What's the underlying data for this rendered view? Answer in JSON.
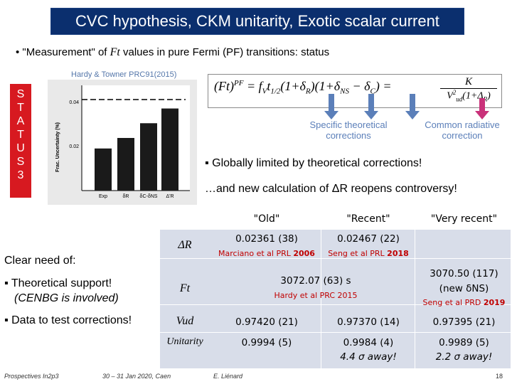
{
  "title": "CVC hypothesis, CKM unitarity, Exotic scalar current",
  "bullet": {
    "prefix": "• \"Measurement\" of ",
    "ft": "Ft",
    "suffix": " values in pure Fermi (PF) transitions: status"
  },
  "hardy_label": "Hardy & Towner PRC91(2015)",
  "status_vertical": [
    "S",
    "T",
    "A",
    "T",
    "U",
    "S",
    "3"
  ],
  "chart": {
    "ylabel": "Frac. Uncertainty (%)",
    "ticks": [
      "0.04",
      "0.02"
    ],
    "categories": [
      "Exp",
      "δR",
      "δC-δNS",
      "Δ'R"
    ]
  },
  "chart_data": {
    "type": "bar",
    "categories": [
      "Exp",
      "δR",
      "δC-δNS",
      "ΔR"
    ],
    "values": [
      0.02,
      0.025,
      0.032,
      0.039
    ],
    "ylabel": "Frac. Uncertainty (%)",
    "ylim": [
      0,
      0.05
    ]
  },
  "formula": {
    "lhs": "(Ft)",
    "sup": "PF",
    "rhs": "= f",
    "mid": "V",
    "rest": "t",
    "sub": "1/2",
    "terms": "(1+δ",
    "r": "R",
    "plus": ")(1+δ",
    "ns": "NS",
    "minus": " − δ",
    "c": "C",
    "close": ") =",
    "frac_num": "K",
    "frac_den": "V",
    "ud": "ud",
    "den_tail": "(1+Δ",
    "den_r": "R",
    "den_close": ")"
  },
  "notes": {
    "specific": "Specific theoretical corrections",
    "common": "Common radiative correction"
  },
  "globally": "▪ Globally limited by theoretical corrections!",
  "new_calc": "…and new calculation of ΔR reopens controversy!",
  "clear_need": "Clear need of:",
  "support": "▪ Theoretical support!",
  "support2": "(CENBG is involved)",
  "data_test": "▪ Data to test corrections!",
  "table": {
    "headers": [
      "\"Old\"",
      "\"Recent\"",
      "\"Very recent\""
    ],
    "row_labels": [
      "ΔR",
      "Ft",
      "Vud",
      "Unitarity"
    ],
    "delta_old": "0.02361 (38)",
    "delta_recent": "0.02467 (22)",
    "delta_old_ref": "Marciano et al PRL ",
    "delta_old_year": "2006",
    "delta_recent_ref": "Seng et al PRL ",
    "delta_recent_year": "2018",
    "ft_value": "3072.07 (63) s",
    "ft_ref": "Hardy et al PRC 2015",
    "ft_new": "3070.50 (117)",
    "ft_new_note": "(new δNS)",
    "ft_new_ref": "Seng et al PRD ",
    "ft_new_year": "2019",
    "vud": [
      "0.97420 (21)",
      "0.97370 (14)",
      "0.97395 (21)"
    ],
    "unit": [
      "0.9994 (5)",
      "0.9984 (4)",
      "0.9989 (5)"
    ],
    "away": [
      "4.4 σ away!",
      "2.2 σ away!"
    ]
  },
  "footer": {
    "left": "Prospectives In2p3",
    "mid": "30 – 31 Jan 2020, Caen",
    "author": "E. Liénard",
    "page": "18"
  }
}
